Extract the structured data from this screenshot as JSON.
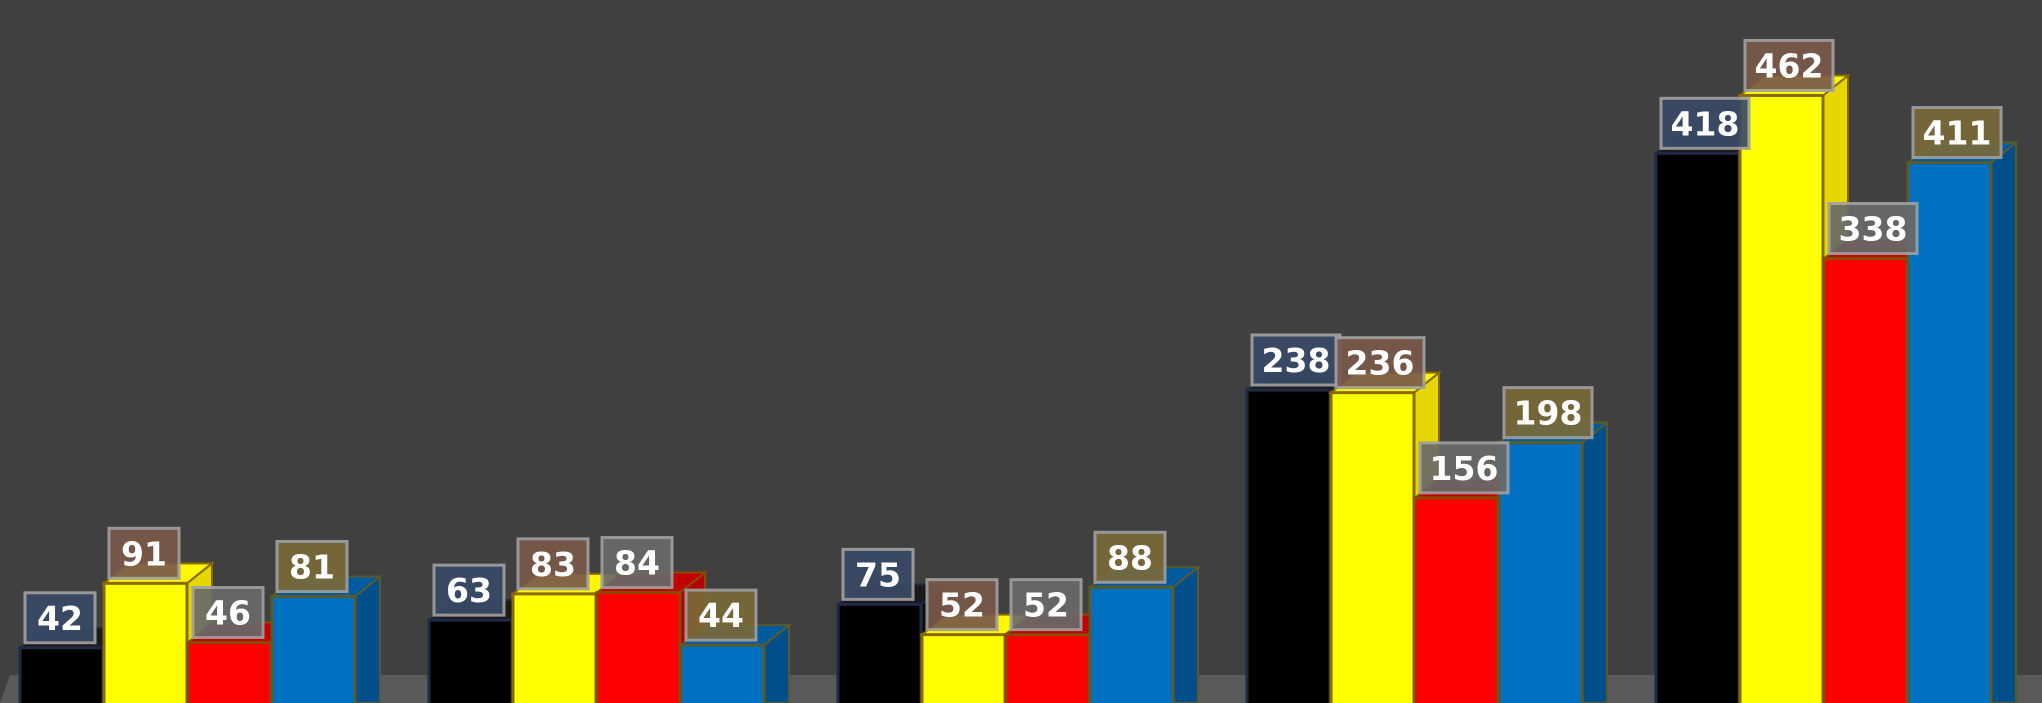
{
  "chart_data": {
    "type": "bar",
    "variant": "3d-clustered-column",
    "title": "",
    "xlabel": "",
    "ylabel": "",
    "categories": [
      "",
      "",
      "",
      "",
      ""
    ],
    "series": [
      {
        "values": [
          42,
          63,
          75,
          238,
          418
        ]
      },
      {
        "values": [
          91,
          83,
          52,
          236,
          462
        ]
      },
      {
        "values": [
          46,
          84,
          52,
          156,
          338
        ]
      },
      {
        "values": [
          81,
          44,
          88,
          198,
          411
        ]
      }
    ],
    "ylim": [
      0,
      540
    ],
    "grid": false,
    "legend": "none",
    "data_labels": true
  },
  "colors": {
    "background": "#404040",
    "floor": "#5a5a5a",
    "series_fill": [
      "#000000",
      "#ffff00",
      "#ff0000",
      "#0070c0"
    ],
    "series_side": [
      "#0d0d0d",
      "#e6d600",
      "#b30000",
      "#004f8a"
    ],
    "series_top": [
      "#1a1a1a",
      "#fff700",
      "#c20000",
      "#005a9e"
    ],
    "series_outline": [
      "#1f2a44",
      "#8a6a00",
      "#8a4a00",
      "#5a5a2a"
    ],
    "label_bg": [
      "#3a4a66",
      "#7a5a4a",
      "#6a6a6a",
      "#7a6a3a"
    ],
    "label_border": "#a0a0a0"
  }
}
